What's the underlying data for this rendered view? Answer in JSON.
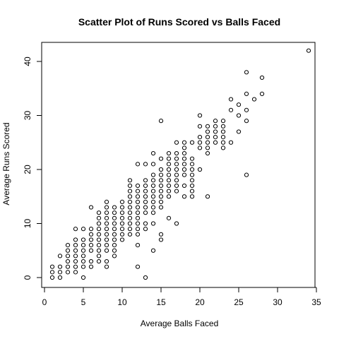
{
  "chart_data": {
    "type": "scatter",
    "title": "Scatter Plot of Runs Scored vs Balls Faced",
    "xlabel": "Average Balls Faced",
    "ylabel": "Average Runs Scored",
    "xlim": [
      0,
      35
    ],
    "ylim": [
      0,
      42
    ],
    "xticks": [
      0,
      5,
      10,
      15,
      20,
      25,
      30,
      35
    ],
    "yticks": [
      0,
      10,
      20,
      30,
      40
    ],
    "grid": false,
    "legend": "none",
    "marker_color": "#000000",
    "points": [
      [
        1,
        0
      ],
      [
        1,
        1
      ],
      [
        1,
        2
      ],
      [
        2,
        0
      ],
      [
        2,
        1
      ],
      [
        2,
        2
      ],
      [
        2,
        4
      ],
      [
        3,
        1
      ],
      [
        3,
        2
      ],
      [
        3,
        3
      ],
      [
        3,
        4
      ],
      [
        3,
        5
      ],
      [
        3,
        6
      ],
      [
        4,
        1
      ],
      [
        4,
        2
      ],
      [
        4,
        3
      ],
      [
        4,
        4
      ],
      [
        4,
        5
      ],
      [
        4,
        6
      ],
      [
        4,
        7
      ],
      [
        4,
        9
      ],
      [
        5,
        0
      ],
      [
        5,
        2
      ],
      [
        5,
        3
      ],
      [
        5,
        4
      ],
      [
        5,
        5
      ],
      [
        5,
        6
      ],
      [
        5,
        7
      ],
      [
        5,
        9
      ],
      [
        6,
        2
      ],
      [
        6,
        3
      ],
      [
        6,
        5
      ],
      [
        6,
        6
      ],
      [
        6,
        7
      ],
      [
        6,
        8
      ],
      [
        6,
        9
      ],
      [
        6,
        13
      ],
      [
        7,
        3
      ],
      [
        7,
        4
      ],
      [
        7,
        5
      ],
      [
        7,
        6
      ],
      [
        7,
        7
      ],
      [
        7,
        8
      ],
      [
        7,
        9
      ],
      [
        7,
        10
      ],
      [
        7,
        11
      ],
      [
        7,
        12
      ],
      [
        8,
        2
      ],
      [
        8,
        3
      ],
      [
        8,
        5
      ],
      [
        8,
        6
      ],
      [
        8,
        7
      ],
      [
        8,
        8
      ],
      [
        8,
        9
      ],
      [
        8,
        10
      ],
      [
        8,
        11
      ],
      [
        8,
        12
      ],
      [
        8,
        13
      ],
      [
        8,
        14
      ],
      [
        9,
        4
      ],
      [
        9,
        5
      ],
      [
        9,
        6
      ],
      [
        9,
        7
      ],
      [
        9,
        8
      ],
      [
        9,
        9
      ],
      [
        9,
        10
      ],
      [
        9,
        11
      ],
      [
        9,
        12
      ],
      [
        9,
        13
      ],
      [
        10,
        7
      ],
      [
        10,
        8
      ],
      [
        10,
        9
      ],
      [
        10,
        10
      ],
      [
        10,
        11
      ],
      [
        10,
        12
      ],
      [
        10,
        13
      ],
      [
        10,
        14
      ],
      [
        11,
        8
      ],
      [
        11,
        9
      ],
      [
        11,
        10
      ],
      [
        11,
        11
      ],
      [
        11,
        12
      ],
      [
        11,
        13
      ],
      [
        11,
        14
      ],
      [
        11,
        15
      ],
      [
        11,
        16
      ],
      [
        11,
        17
      ],
      [
        11,
        18
      ],
      [
        12,
        2
      ],
      [
        12,
        6
      ],
      [
        12,
        8
      ],
      [
        12,
        9
      ],
      [
        12,
        10
      ],
      [
        12,
        11
      ],
      [
        12,
        12
      ],
      [
        12,
        13
      ],
      [
        12,
        14
      ],
      [
        12,
        15
      ],
      [
        12,
        16
      ],
      [
        12,
        17
      ],
      [
        12,
        21
      ],
      [
        13,
        0
      ],
      [
        13,
        9
      ],
      [
        13,
        10
      ],
      [
        13,
        12
      ],
      [
        13,
        13
      ],
      [
        13,
        14
      ],
      [
        13,
        15
      ],
      [
        13,
        16
      ],
      [
        13,
        17
      ],
      [
        13,
        18
      ],
      [
        13,
        21
      ],
      [
        14,
        5
      ],
      [
        14,
        10
      ],
      [
        14,
        12
      ],
      [
        14,
        13
      ],
      [
        14,
        14
      ],
      [
        14,
        15
      ],
      [
        14,
        16
      ],
      [
        14,
        17
      ],
      [
        14,
        18
      ],
      [
        14,
        19
      ],
      [
        14,
        21
      ],
      [
        14,
        23
      ],
      [
        15,
        7
      ],
      [
        15,
        8
      ],
      [
        15,
        13
      ],
      [
        15,
        14
      ],
      [
        15,
        15
      ],
      [
        15,
        16
      ],
      [
        15,
        17
      ],
      [
        15,
        18
      ],
      [
        15,
        19
      ],
      [
        15,
        20
      ],
      [
        15,
        22
      ],
      [
        15,
        29
      ],
      [
        16,
        11
      ],
      [
        16,
        15
      ],
      [
        16,
        16
      ],
      [
        16,
        17
      ],
      [
        16,
        18
      ],
      [
        16,
        19
      ],
      [
        16,
        20
      ],
      [
        16,
        21
      ],
      [
        16,
        22
      ],
      [
        16,
        23
      ],
      [
        17,
        10
      ],
      [
        17,
        16
      ],
      [
        17,
        17
      ],
      [
        17,
        18
      ],
      [
        17,
        19
      ],
      [
        17,
        20
      ],
      [
        17,
        21
      ],
      [
        17,
        22
      ],
      [
        17,
        23
      ],
      [
        17,
        25
      ],
      [
        18,
        15
      ],
      [
        18,
        17
      ],
      [
        18,
        19
      ],
      [
        18,
        20
      ],
      [
        18,
        21
      ],
      [
        18,
        22
      ],
      [
        18,
        23
      ],
      [
        18,
        24
      ],
      [
        18,
        25
      ],
      [
        19,
        15
      ],
      [
        19,
        16
      ],
      [
        19,
        17
      ],
      [
        19,
        18
      ],
      [
        19,
        19
      ],
      [
        19,
        20
      ],
      [
        19,
        21
      ],
      [
        19,
        22
      ],
      [
        19,
        25
      ],
      [
        20,
        20
      ],
      [
        20,
        24
      ],
      [
        20,
        25
      ],
      [
        20,
        26
      ],
      [
        20,
        28
      ],
      [
        20,
        30
      ],
      [
        21,
        15
      ],
      [
        21,
        23
      ],
      [
        21,
        24
      ],
      [
        21,
        25
      ],
      [
        21,
        26
      ],
      [
        21,
        27
      ],
      [
        21,
        28
      ],
      [
        22,
        25
      ],
      [
        22,
        26
      ],
      [
        22,
        27
      ],
      [
        22,
        28
      ],
      [
        22,
        29
      ],
      [
        23,
        24
      ],
      [
        23,
        25
      ],
      [
        23,
        26
      ],
      [
        23,
        27
      ],
      [
        23,
        28
      ],
      [
        23,
        29
      ],
      [
        24,
        25
      ],
      [
        24,
        31
      ],
      [
        24,
        33
      ],
      [
        25,
        27
      ],
      [
        25,
        30
      ],
      [
        25,
        32
      ],
      [
        26,
        19
      ],
      [
        26,
        29
      ],
      [
        26,
        31
      ],
      [
        26,
        34
      ],
      [
        26,
        38
      ],
      [
        27,
        33
      ],
      [
        28,
        34
      ],
      [
        28,
        37
      ],
      [
        34,
        42
      ]
    ]
  }
}
